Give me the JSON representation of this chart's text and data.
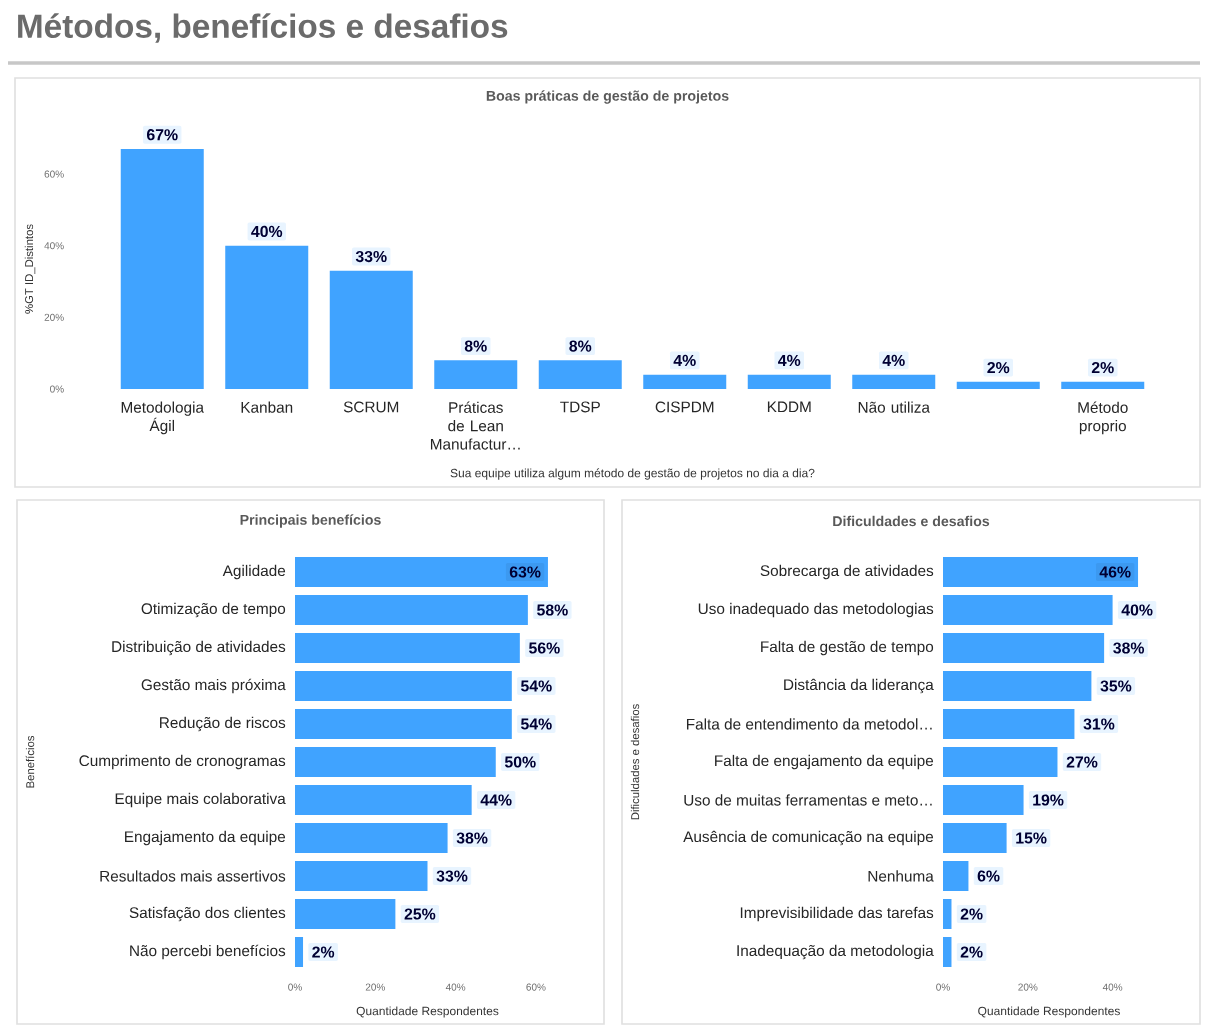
{
  "chart_data": [
    {
      "type": "bar",
      "title": "Boas práticas de gestão de projetos",
      "xlabel": "Sua equipe utiliza algum método de gestão de projetos no dia a dia?",
      "ylabel": "%GT ID_Distintos",
      "annotations": [
        "Métodos, benefícios e desafios"
      ],
      "categories": [
        "Metodologia Ágil",
        "Kanban",
        "SCRUM",
        "Práticas de Lean Manufactur…",
        "TDSP",
        "CISPDM",
        "KDDM",
        "Não utiliza",
        null,
        "Método proprio"
      ],
      "values": [
        67,
        40,
        33,
        8,
        8,
        4,
        4,
        4,
        2,
        2
      ],
      "value_labels": [
        "67%",
        "40%",
        "33%",
        "8%",
        "8%",
        "4%",
        "4%",
        "4%",
        "2%",
        "2%"
      ],
      "color": "#40a3ff",
      "ylim": [
        0,
        67
      ],
      "yticks": [
        {
          "value": 0,
          "label": "0%"
        },
        {
          "value": 20,
          "label": "20%"
        },
        {
          "value": 40,
          "label": "40%"
        },
        {
          "value": 60,
          "label": "60%"
        }
      ]
    },
    {
      "type": "bar",
      "orientation": "horizontal",
      "title": "Principais benefícios",
      "xlabel": "Quantidade Respondentes",
      "ylabel": "Benefícios",
      "categories": [
        "Agilidade",
        "Otimização de tempo",
        "Distribuição de atividades",
        "Gestão mais próxima",
        "Redução de riscos",
        "Cumprimento de cronogramas",
        "Equipe mais colaborativa",
        "Engajamento da equipe",
        "Resultados mais assertivos",
        "Satisfação dos clientes",
        "Não percebi benefícios"
      ],
      "values": [
        63,
        58,
        56,
        54,
        54,
        50,
        44,
        38,
        33,
        25,
        2
      ],
      "value_labels": [
        "63%",
        "58%",
        "56%",
        "54%",
        "54%",
        "50%",
        "44%",
        "38%",
        "33%",
        "25%",
        "2%"
      ],
      "color": "#40a3ff",
      "xlim": [
        0,
        66
      ],
      "xticks": [
        {
          "value": 0,
          "label": "0%"
        },
        {
          "value": 20,
          "label": "20%"
        },
        {
          "value": 40,
          "label": "40%"
        },
        {
          "value": 60,
          "label": "60%"
        }
      ]
    },
    {
      "type": "bar",
      "orientation": "horizontal",
      "title": "Dificuldades e desafios",
      "xlabel": "Quantidade Respondentes",
      "ylabel": "Dificuldades e desafios",
      "categories": [
        "Sobrecarga de atividades",
        "Uso inadequado das metodologias",
        "Falta de gestão de tempo",
        "Distância da liderança",
        "Falta de entendimento da metodol…",
        "Falta de engajamento da equipe",
        "Uso de muitas ferramentas e meto…",
        "Ausência de comunicação na equipe",
        "Nenhuma",
        "Imprevisibilidade das tarefas",
        "Inadequação da metodologia"
      ],
      "values": [
        46,
        40,
        38,
        35,
        31,
        27,
        19,
        15,
        6,
        2,
        2
      ],
      "value_labels": [
        "46%",
        "40%",
        "38%",
        "35%",
        "31%",
        "27%",
        "19%",
        "15%",
        "6%",
        "2%",
        "2%"
      ],
      "color": "#40a3ff",
      "xlim": [
        0,
        50
      ],
      "xticks": [
        {
          "value": 0,
          "label": "0%"
        },
        {
          "value": 20,
          "label": "20%"
        },
        {
          "value": 40,
          "label": "40%"
        }
      ]
    }
  ]
}
